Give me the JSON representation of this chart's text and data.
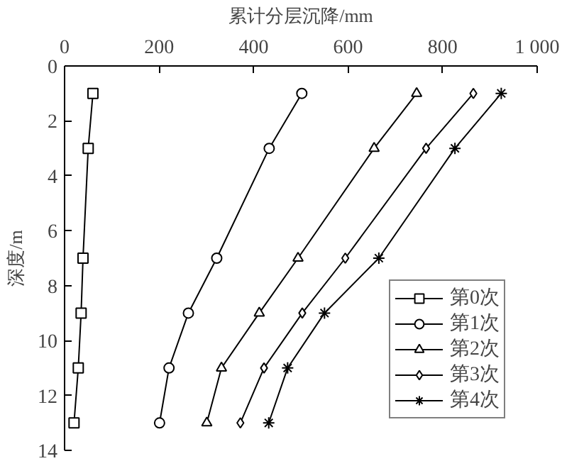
{
  "chart_data": {
    "type": "line",
    "xlabel": "累计分层沉降/mm",
    "ylabel": "深度/m",
    "xlim": [
      0,
      1000
    ],
    "xticks": [
      0,
      200,
      400,
      600,
      800,
      {
        "value": 1000,
        "label": "1 000"
      }
    ],
    "ylim": [
      14,
      0
    ],
    "yticks": [
      0,
      2,
      4,
      6,
      8,
      10,
      12,
      14
    ],
    "grid": false,
    "legend": "bottom right",
    "line_style": "solid",
    "series": [
      {
        "name": "第0次",
        "color": "#000000",
        "marker": "square",
        "x": [
          60,
          50,
          39,
          35,
          29,
          20
        ],
        "values": [
          1,
          3,
          7,
          9,
          11,
          13
        ]
      },
      {
        "name": "第1次",
        "color": "#000000",
        "marker": "circle",
        "x": [
          502,
          433,
          322,
          262,
          221,
          201
        ],
        "values": [
          1,
          3,
          7,
          9,
          11,
          13
        ]
      },
      {
        "name": "第2次",
        "color": "#000000",
        "marker": "triangle",
        "x": [
          745,
          655,
          494,
          412,
          332,
          301
        ],
        "values": [
          1,
          3,
          7,
          9,
          11,
          13
        ]
      },
      {
        "name": "第3次",
        "color": "#000000",
        "marker": "diamond",
        "x": [
          865,
          765,
          594,
          503,
          422,
          372
        ],
        "values": [
          1,
          3,
          7,
          9,
          11,
          13
        ]
      },
      {
        "name": "第4次",
        "color": "#000000",
        "marker": "cross",
        "x": [
          924,
          826,
          665,
          550,
          472,
          432
        ],
        "values": [
          1,
          3,
          7,
          9,
          11,
          13
        ]
      }
    ]
  }
}
